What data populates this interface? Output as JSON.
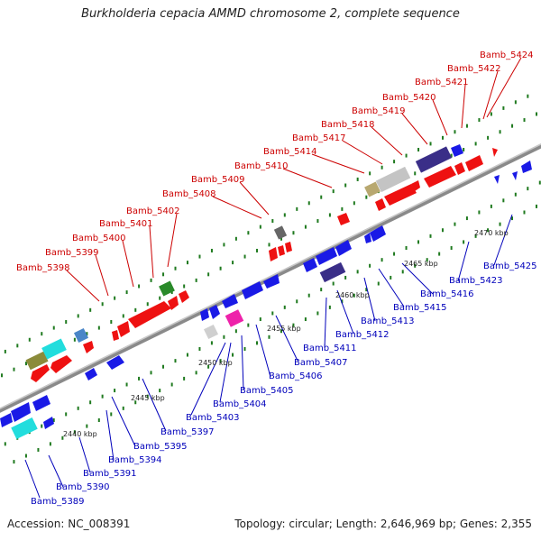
{
  "title": "Burkholderia cepacia AMMD chromosome 2, complete sequence",
  "accession": "Accession: NC_008391",
  "topology": "Topology: circular; Length: 2,646,969 bp; Genes: 2,355",
  "colors": {
    "backbone": "#888888",
    "forward_label": "#cc0000",
    "reverse_label": "#0000bb",
    "forward_arrow": "#ee1111",
    "reverse_arrow": "#1a1ae6",
    "tick_dot": "#1f7a1f"
  },
  "scale_labels": [
    "2440 kbp",
    "2445 kbp",
    "2450 kbp",
    "2455 kbp",
    "2460 kbp",
    "2465 kbp",
    "2470 kbp"
  ],
  "forward_genes": [
    "Bamb_5398",
    "Bamb_5399",
    "Bamb_5400",
    "Bamb_5401",
    "Bamb_5402",
    "Bamb_5408",
    "Bamb_5409",
    "Bamb_5410",
    "Bamb_5414",
    "Bamb_5417",
    "Bamb_5418",
    "Bamb_5419",
    "Bamb_5420",
    "Bamb_5421",
    "Bamb_5422",
    "Bamb_5424"
  ],
  "reverse_genes": [
    "Bamb_5389",
    "Bamb_5390",
    "Bamb_5391",
    "Bamb_5394",
    "Bamb_5395",
    "Bamb_5397",
    "Bamb_5403",
    "Bamb_5404",
    "Bamb_5405",
    "Bamb_5406",
    "Bamb_5407",
    "Bamb_5411",
    "Bamb_5412",
    "Bamb_5413",
    "Bamb_5415",
    "Bamb_5416",
    "Bamb_5423",
    "Bamb_5425"
  ]
}
